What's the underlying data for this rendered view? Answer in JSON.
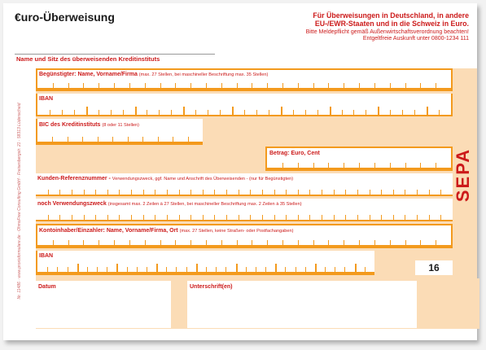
{
  "form": {
    "title": "€uro-Überweisung",
    "notice_bold": "Für Überweisungen in Deutschland, in andere EU-/EWR-Staaten und in die Schweiz in Euro.",
    "notice_line2": "Bitte Meldepflicht gemäß Außenwirtschaftsverordnung beachten!",
    "notice_line3": "Entgeltfreie Auskunft unter 0800-1234 111",
    "bank_label": "Name und Sitz des überweisenden Kreditinstituts",
    "form_number": "16",
    "sepa_logo": "SEPA",
    "side_text": "Nr. 11486 · www.proxisformulare.de · OhmsFree Consulting GmbH · Freisenbergstr. 21 · 58313 Lüdenscheid"
  },
  "fields": {
    "beneficiary_label": "Begünstigter: Name, Vorname/Firma",
    "beneficiary_hint": "(max. 27 Stellen, bei maschineller Beschriftung max. 35 Stellen)",
    "iban_label": "IBAN",
    "bic_label": "BIC des Kreditinstituts",
    "bic_hint": "(8 oder 11 Stellen)",
    "amount_label": "Betrag: Euro, Cent",
    "reference_label": "Kunden-Referenznummer -",
    "reference_hint": "Verwendungszweck, ggf. Name und Anschrift des Überweisenden - (nur für Begünstigten)",
    "purpose_label": "noch Verwendungszweck",
    "purpose_hint": "(insgesamt max. 2 Zeilen à 27 Stellen, bei maschineller Beschriftung max. 2 Zeilen à 35 Stellen)",
    "holder_label": "Kontoinhaber/Einzahler: Name, Vorname/Firma, Ort",
    "holder_hint": "(max. 27 Stellen, keine Straßen- oder Postfachangaben)",
    "iban2_label": "IBAN",
    "date_label": "Datum",
    "signature_label": "Unterschrift(en)"
  },
  "colors": {
    "accent": "#f39a1d",
    "fill": "#fbdcb6",
    "label": "#cc1a1a"
  }
}
